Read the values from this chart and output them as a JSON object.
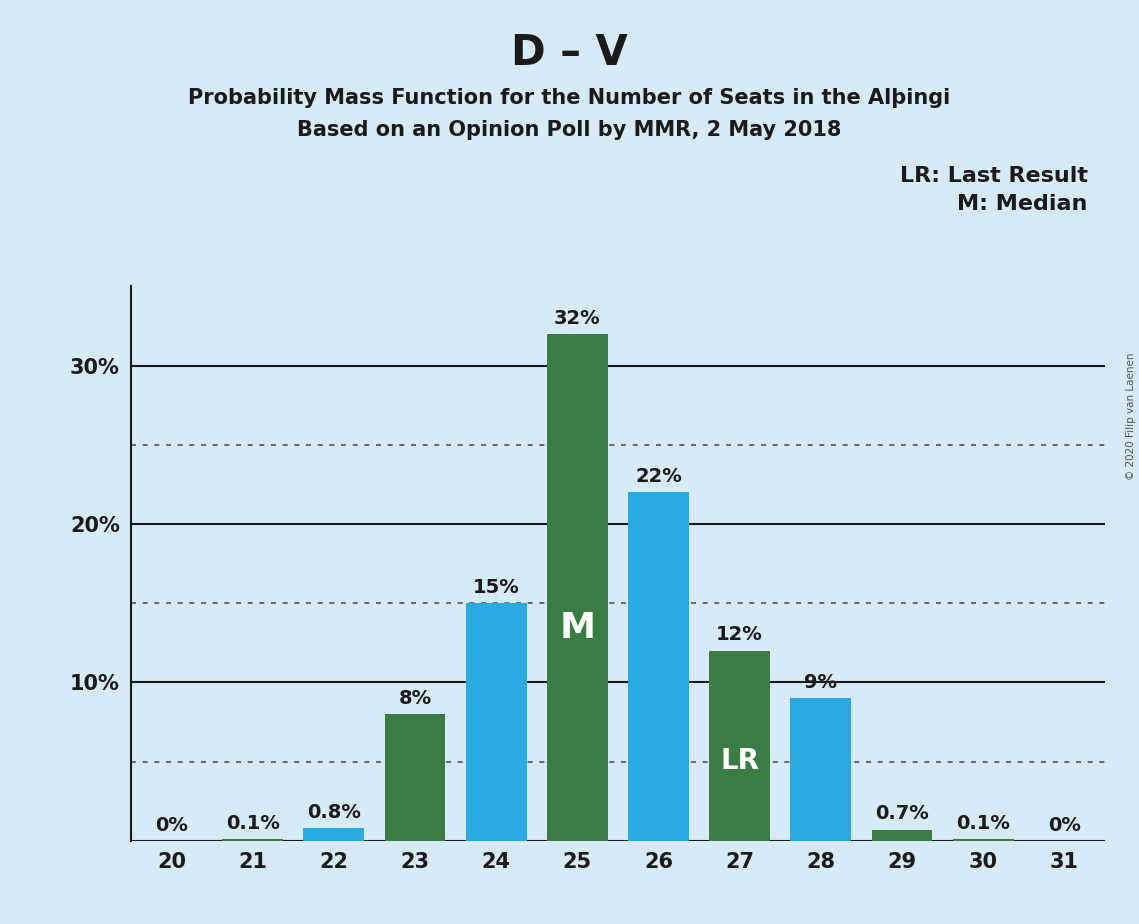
{
  "title": "D – V",
  "subtitle1": "Probability Mass Function for the Number of Seats in the Alþingi",
  "subtitle2": "Based on an Opinion Poll by MMR, 2 May 2018",
  "copyright": "© 2020 Filip van Laenen",
  "seats": [
    20,
    21,
    22,
    23,
    24,
    25,
    26,
    27,
    28,
    29,
    30,
    31
  ],
  "probabilities": [
    0.0,
    0.1,
    0.8,
    8.0,
    15.0,
    32.0,
    22.0,
    12.0,
    9.0,
    0.7,
    0.1,
    0.0
  ],
  "bar_colors": [
    "#3a7d44",
    "#3a7d44",
    "#29abe2",
    "#3a7d44",
    "#29abe2",
    "#3a7d44",
    "#29abe2",
    "#3a7d44",
    "#29abe2",
    "#3a7d44",
    "#3a7d44",
    "#3a7d44"
  ],
  "label_texts": [
    "0%",
    "0.1%",
    "0.8%",
    "8%",
    "15%",
    "32%",
    "22%",
    "12%",
    "9%",
    "0.7%",
    "0.1%",
    "0%"
  ],
  "median_seat": 25,
  "last_result_seat": 27,
  "background_color": "#d6eaf8",
  "ylim": [
    0,
    35
  ],
  "solid_yticks": [
    0,
    10,
    20,
    30
  ],
  "dotted_yticks": [
    5,
    15,
    25
  ],
  "legend_lr": "LR: Last Result",
  "legend_m": "M: Median",
  "title_fontsize": 30,
  "subtitle_fontsize": 15,
  "label_fontsize": 14,
  "axis_fontsize": 15,
  "legend_fontsize": 16,
  "inner_label_fontsize_m": 26,
  "inner_label_fontsize_lr": 20,
  "inner_label_color": "#ffffff"
}
